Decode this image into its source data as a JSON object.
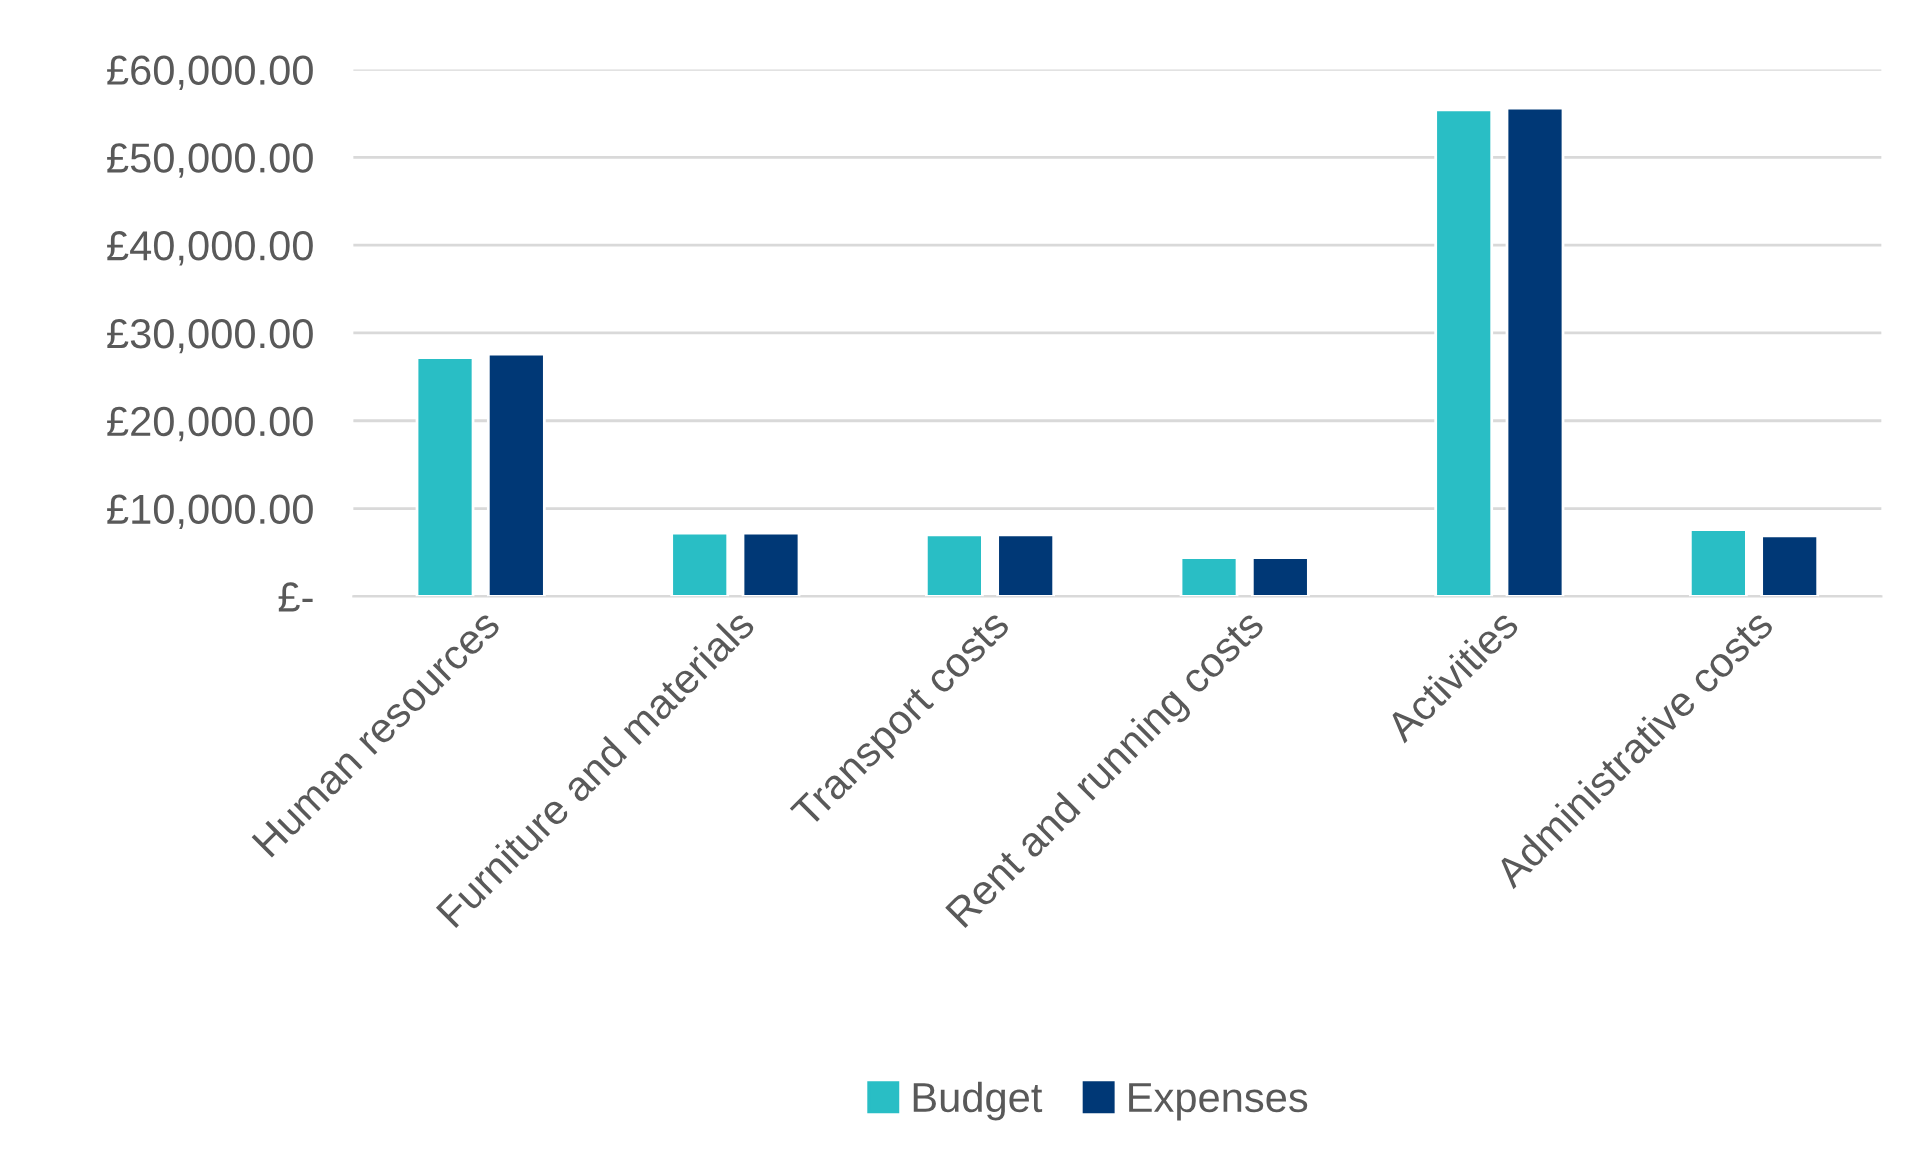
{
  "chart_data": {
    "type": "bar",
    "categories": [
      "Human resources",
      "Furniture and materials",
      "Transport costs",
      "Rent and running costs",
      "Activities",
      "Administrative costs"
    ],
    "series": [
      {
        "name": "Budget",
        "color": "#29bec5",
        "values": [
          27200,
          7200,
          7000,
          4400,
          55400,
          7600
        ]
      },
      {
        "name": "Expenses",
        "color": "#003876",
        "values": [
          27600,
          7200,
          7000,
          4400,
          55600,
          6900
        ]
      }
    ],
    "ylim": [
      0,
      60000
    ],
    "yticks": [
      {
        "value": 0,
        "label": "£-"
      },
      {
        "value": 10000,
        "label": "£10,000.00"
      },
      {
        "value": 20000,
        "label": "£20,000.00"
      },
      {
        "value": 30000,
        "label": "£30,000.00"
      },
      {
        "value": 40000,
        "label": "£40,000.00"
      },
      {
        "value": 50000,
        "label": "£50,000.00"
      },
      {
        "value": 60000,
        "label": "£60,000.00"
      }
    ],
    "grid": "y",
    "legend": "bottom"
  }
}
